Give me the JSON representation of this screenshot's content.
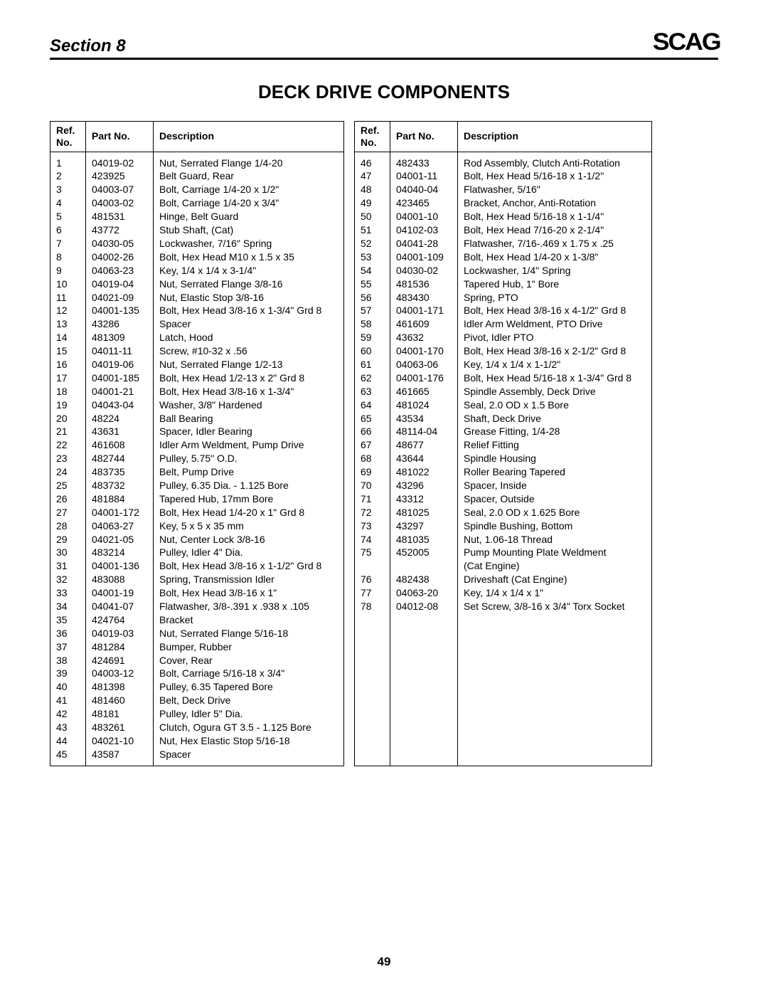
{
  "header": {
    "section_label": "Section 8",
    "logo_text": "SCAG"
  },
  "title": "DECK DRIVE COMPONENTS",
  "columns": {
    "ref_header": "Ref.\nNo.",
    "part_header": "Part No.",
    "desc_header": "Description"
  },
  "left_rows": [
    {
      "ref": "1",
      "part": "04019-02",
      "desc": "Nut, Serrated Flange 1/4-20"
    },
    {
      "ref": "2",
      "part": "423925",
      "desc": "Belt Guard, Rear"
    },
    {
      "ref": "3",
      "part": "04003-07",
      "desc": "Bolt, Carriage 1/4-20 x 1/2\""
    },
    {
      "ref": "4",
      "part": "04003-02",
      "desc": "Bolt, Carriage 1/4-20 x 3/4\""
    },
    {
      "ref": "5",
      "part": "481531",
      "desc": "Hinge, Belt Guard"
    },
    {
      "ref": "6",
      "part": "43772",
      "desc": "Stub Shaft, (Cat)"
    },
    {
      "ref": "7",
      "part": "04030-05",
      "desc": "Lockwasher, 7/16\" Spring"
    },
    {
      "ref": "8",
      "part": "04002-26",
      "desc": "Bolt, Hex Head M10 x 1.5 x 35"
    },
    {
      "ref": "9",
      "part": "04063-23",
      "desc": "Key, 1/4 x 1/4 x 3-1/4\""
    },
    {
      "ref": "10",
      "part": "04019-04",
      "desc": "Nut, Serrated Flange 3/8-16"
    },
    {
      "ref": "11",
      "part": "04021-09",
      "desc": "Nut, Elastic Stop 3/8-16"
    },
    {
      "ref": "12",
      "part": "04001-135",
      "desc": "Bolt, Hex Head 3/8-16 x 1-3/4\" Grd 8"
    },
    {
      "ref": "13",
      "part": "43286",
      "desc": "Spacer"
    },
    {
      "ref": "14",
      "part": "481309",
      "desc": "Latch, Hood"
    },
    {
      "ref": "15",
      "part": "04011-11",
      "desc": "Screw, #10-32 x .56"
    },
    {
      "ref": "16",
      "part": "04019-06",
      "desc": "Nut, Serrated Flange 1/2-13"
    },
    {
      "ref": "17",
      "part": "04001-185",
      "desc": "Bolt, Hex Head 1/2-13 x 2\" Grd 8"
    },
    {
      "ref": "18",
      "part": "04001-21",
      "desc": "Bolt, Hex Head 3/8-16 x 1-3/4\""
    },
    {
      "ref": "19",
      "part": "04043-04",
      "desc": "Washer, 3/8\" Hardened"
    },
    {
      "ref": "20",
      "part": "48224",
      "desc": "Ball Bearing"
    },
    {
      "ref": "21",
      "part": "43631",
      "desc": "Spacer, Idler Bearing"
    },
    {
      "ref": "22",
      "part": "461608",
      "desc": "Idler Arm Weldment, Pump Drive"
    },
    {
      "ref": "23",
      "part": "482744",
      "desc": "Pulley, 5.75\" O.D."
    },
    {
      "ref": "24",
      "part": "483735",
      "desc": "Belt, Pump Drive"
    },
    {
      "ref": "25",
      "part": "483732",
      "desc": "Pulley, 6.35 Dia. - 1.125 Bore"
    },
    {
      "ref": "26",
      "part": "481884",
      "desc": "Tapered Hub, 17mm Bore"
    },
    {
      "ref": "27",
      "part": "04001-172",
      "desc": "Bolt, Hex Head 1/4-20 x 1\" Grd 8"
    },
    {
      "ref": "28",
      "part": "04063-27",
      "desc": "Key, 5 x 5 x 35 mm"
    },
    {
      "ref": "29",
      "part": "04021-05",
      "desc": "Nut, Center Lock 3/8-16"
    },
    {
      "ref": "30",
      "part": "483214",
      "desc": "Pulley, Idler 4\" Dia."
    },
    {
      "ref": "31",
      "part": "04001-136",
      "desc": "Bolt, Hex Head 3/8-16 x 1-1/2\" Grd 8"
    },
    {
      "ref": "32",
      "part": "483088",
      "desc": "Spring, Transmission Idler"
    },
    {
      "ref": "33",
      "part": "04001-19",
      "desc": "Bolt, Hex Head 3/8-16 x 1\""
    },
    {
      "ref": "34",
      "part": "04041-07",
      "desc": "Flatwasher, 3/8-.391 x .938 x .105"
    },
    {
      "ref": "35",
      "part": "424764",
      "desc": "Bracket"
    },
    {
      "ref": "36",
      "part": "04019-03",
      "desc": "Nut, Serrated Flange 5/16-18"
    },
    {
      "ref": "37",
      "part": "481284",
      "desc": "Bumper, Rubber"
    },
    {
      "ref": "38",
      "part": "424691",
      "desc": "Cover, Rear"
    },
    {
      "ref": "39",
      "part": "04003-12",
      "desc": "Bolt, Carriage 5/16-18 x 3/4\""
    },
    {
      "ref": "40",
      "part": "481398",
      "desc": "Pulley, 6.35 Tapered Bore"
    },
    {
      "ref": "41",
      "part": "481460",
      "desc": "Belt, Deck Drive"
    },
    {
      "ref": "42",
      "part": "48181",
      "desc": "Pulley, Idler 5\" Dia."
    },
    {
      "ref": "43",
      "part": "483261",
      "desc": "Clutch, Ogura GT 3.5 - 1.125 Bore"
    },
    {
      "ref": "44",
      "part": "04021-10",
      "desc": "Nut, Hex Elastic Stop 5/16-18"
    },
    {
      "ref": "45",
      "part": "43587",
      "desc": "Spacer"
    }
  ],
  "right_rows": [
    {
      "ref": "46",
      "part": "482433",
      "desc": "Rod Assembly, Clutch Anti-Rotation"
    },
    {
      "ref": "47",
      "part": "04001-11",
      "desc": "Bolt, Hex Head 5/16-18 x 1-1/2\""
    },
    {
      "ref": "48",
      "part": "04040-04",
      "desc": "Flatwasher, 5/16\""
    },
    {
      "ref": "49",
      "part": "423465",
      "desc": "Bracket, Anchor, Anti-Rotation"
    },
    {
      "ref": "50",
      "part": "04001-10",
      "desc": "Bolt, Hex Head 5/16-18 x 1-1/4\""
    },
    {
      "ref": "51",
      "part": "04102-03",
      "desc": "Bolt, Hex Head 7/16-20 x 2-1/4\""
    },
    {
      "ref": "52",
      "part": "04041-28",
      "desc": "Flatwasher, 7/16-.469 x 1.75 x .25"
    },
    {
      "ref": "53",
      "part": "04001-109",
      "desc": "Bolt, Hex Head 1/4-20 x 1-3/8\""
    },
    {
      "ref": "54",
      "part": "04030-02",
      "desc": "Lockwasher, 1/4\" Spring"
    },
    {
      "ref": "55",
      "part": "481536",
      "desc": "Tapered Hub, 1\" Bore"
    },
    {
      "ref": "56",
      "part": "483430",
      "desc": "Spring, PTO"
    },
    {
      "ref": "57",
      "part": "04001-171",
      "desc": "Bolt, Hex Head 3/8-16 x 4-1/2\" Grd 8"
    },
    {
      "ref": "58",
      "part": "461609",
      "desc": "Idler Arm Weldment, PTO Drive"
    },
    {
      "ref": "59",
      "part": "43632",
      "desc": "Pivot, Idler PTO"
    },
    {
      "ref": "60",
      "part": "04001-170",
      "desc": "Bolt, Hex Head 3/8-16 x 2-1/2\" Grd 8"
    },
    {
      "ref": "61",
      "part": "04063-06",
      "desc": "Key, 1/4 x 1/4 x 1-1/2\""
    },
    {
      "ref": "62",
      "part": "04001-176",
      "desc": "Bolt, Hex Head 5/16-18 x 1-3/4\" Grd 8"
    },
    {
      "ref": "63",
      "part": "461665",
      "desc": "Spindle Assembly, Deck Drive"
    },
    {
      "ref": "64",
      "part": "481024",
      "desc": "Seal, 2.0 OD x 1.5 Bore"
    },
    {
      "ref": "65",
      "part": "43534",
      "desc": "Shaft, Deck Drive"
    },
    {
      "ref": "66",
      "part": "48114-04",
      "desc": "Grease Fitting, 1/4-28"
    },
    {
      "ref": "67",
      "part": "48677",
      "desc": "Relief Fitting"
    },
    {
      "ref": "68",
      "part": "43644",
      "desc": "Spindle Housing"
    },
    {
      "ref": "69",
      "part": "481022",
      "desc": "Roller Bearing Tapered"
    },
    {
      "ref": "70",
      "part": "43296",
      "desc": "Spacer, Inside"
    },
    {
      "ref": "71",
      "part": "43312",
      "desc": "Spacer, Outside"
    },
    {
      "ref": "72",
      "part": "481025",
      "desc": "Seal, 2.0 OD x 1.625 Bore"
    },
    {
      "ref": "73",
      "part": "43297",
      "desc": "Spindle Bushing, Bottom"
    },
    {
      "ref": "74",
      "part": "481035",
      "desc": "Nut, 1.06-18 Thread"
    },
    {
      "ref": "75",
      "part": "452005",
      "desc": "Pump Mounting Plate Weldment"
    },
    {
      "ref": "",
      "part": "",
      "desc": "(Cat Engine)"
    },
    {
      "ref": "76",
      "part": "482438",
      "desc": "Driveshaft (Cat Engine)"
    },
    {
      "ref": "77",
      "part": "04063-20",
      "desc": "Key, 1/4 x 1/4 x 1\""
    },
    {
      "ref": "78",
      "part": "04012-08",
      "desc": "Set Screw, 3/8-16 x 3/4\" Torx Socket"
    }
  ],
  "page_number": "49"
}
